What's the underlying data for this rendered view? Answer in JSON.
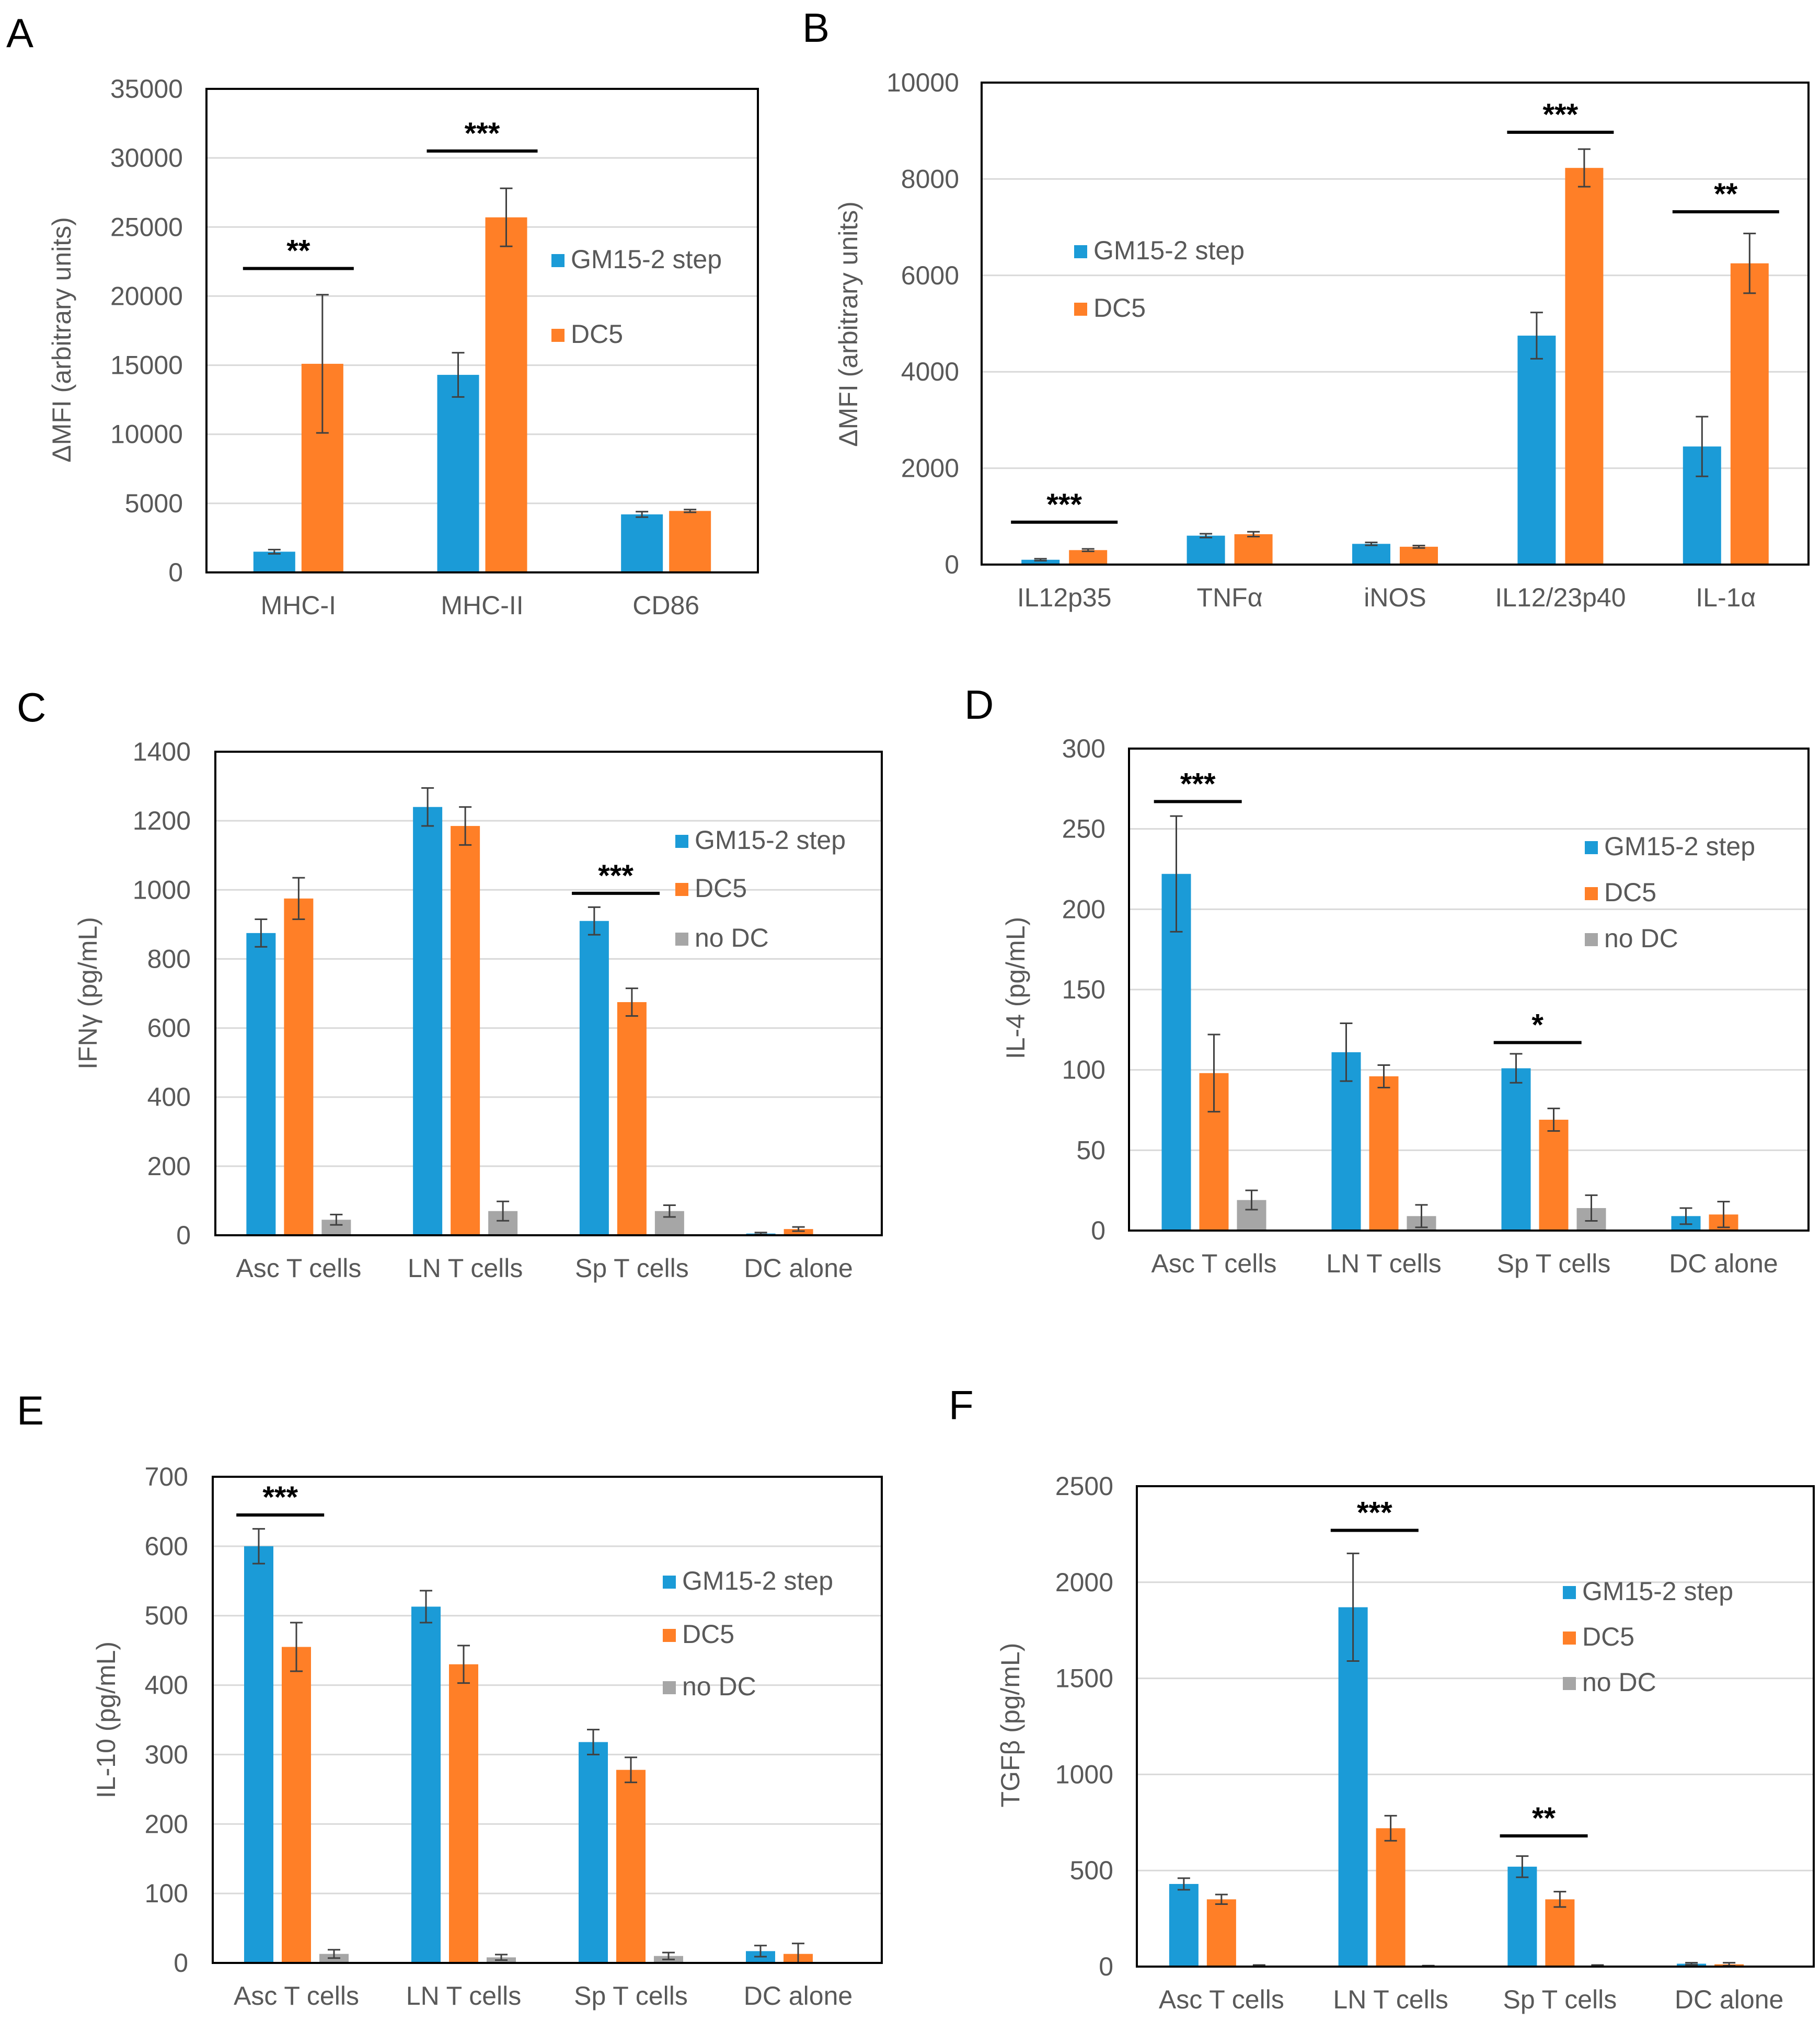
{
  "colors": {
    "gm": "#1B9BD7",
    "dc": "#FF7F27",
    "nodc": "#A6A6A6",
    "grid": "#D9D9D9",
    "axis": "#000000",
    "err": "#404040"
  },
  "chart_data": [
    {
      "panel": "A",
      "type": "bar",
      "ylabel": "ΔMFI (arbitrary units)",
      "ylim": [
        0,
        35000
      ],
      "yticks": [
        0,
        5000,
        10000,
        15000,
        20000,
        25000,
        30000,
        35000
      ],
      "categories": [
        "MHC-I",
        "MHC-II",
        "CD86"
      ],
      "series": [
        {
          "name": "GM15-2 step",
          "color": "gm",
          "values": [
            1500,
            14300,
            4200
          ],
          "errors": [
            150,
            1600,
            200
          ]
        },
        {
          "name": "DC5",
          "color": "dc",
          "values": [
            15100,
            25700,
            4450
          ],
          "errors": [
            5000,
            2100,
            100
          ]
        }
      ],
      "significance": [
        {
          "category": 0,
          "label": "**",
          "y": 22000
        },
        {
          "category": 1,
          "label": "***",
          "y": 30500
        }
      ]
    },
    {
      "panel": "B",
      "type": "bar",
      "ylabel": "ΔMFI (arbitrary units)",
      "ylim": [
        0,
        10000
      ],
      "yticks": [
        0,
        2000,
        4000,
        6000,
        8000,
        10000
      ],
      "categories": [
        "IL12p35",
        "TNFα",
        "iNOS",
        "IL12/23p40",
        "IL-1α"
      ],
      "series": [
        {
          "name": "GM15-2 step",
          "color": "gm",
          "values": [
            100,
            600,
            430,
            4750,
            2450
          ],
          "errors": [
            20,
            40,
            30,
            480,
            620
          ]
        },
        {
          "name": "DC5",
          "color": "dc",
          "values": [
            300,
            630,
            370,
            8230,
            6250
          ],
          "errors": [
            25,
            50,
            25,
            390,
            620
          ]
        }
      ],
      "significance": [
        {
          "category": 0,
          "label": "***",
          "y": 880
        },
        {
          "category": 3,
          "label": "***",
          "y": 8970
        },
        {
          "category": 4,
          "label": "**",
          "y": 7320
        }
      ]
    },
    {
      "panel": "C",
      "type": "bar",
      "ylabel": "IFNγ (pg/mL)",
      "ylim": [
        0,
        1400
      ],
      "yticks": [
        0,
        200,
        400,
        600,
        800,
        1000,
        1200,
        1400
      ],
      "categories": [
        "Asc T cells",
        "LN T cells",
        "Sp T cells",
        "DC alone"
      ],
      "series": [
        {
          "name": "GM15-2 step",
          "color": "gm",
          "values": [
            875,
            1240,
            910,
            5
          ],
          "errors": [
            40,
            55,
            40,
            3
          ]
        },
        {
          "name": "DC5",
          "color": "dc",
          "values": [
            975,
            1185,
            675,
            18
          ],
          "errors": [
            60,
            55,
            40,
            6
          ]
        },
        {
          "name": "no DC",
          "color": "nodc",
          "values": [
            45,
            70,
            70,
            null
          ],
          "errors": [
            15,
            28,
            17,
            null
          ]
        }
      ],
      "significance": [
        {
          "category": 2,
          "label": "***",
          "y": 990
        }
      ]
    },
    {
      "panel": "D",
      "type": "bar",
      "ylabel": "IL-4 (pg/mL)",
      "ylim": [
        0,
        300
      ],
      "yticks": [
        0,
        50,
        100,
        150,
        200,
        250,
        300
      ],
      "categories": [
        "Asc T cells",
        "LN T cells",
        "Sp T cells",
        "DC alone"
      ],
      "series": [
        {
          "name": "GM15-2 step",
          "color": "gm",
          "values": [
            222,
            111,
            101,
            9
          ],
          "errors": [
            36,
            18,
            9,
            5
          ]
        },
        {
          "name": "DC5",
          "color": "dc",
          "values": [
            98,
            96,
            69,
            10
          ],
          "errors": [
            24,
            7,
            7,
            8
          ]
        },
        {
          "name": "no DC",
          "color": "nodc",
          "values": [
            19,
            9,
            14,
            null
          ],
          "errors": [
            6,
            7,
            8,
            null
          ]
        }
      ],
      "significance": [
        {
          "category": 0,
          "label": "***",
          "y": 267
        },
        {
          "category": 2,
          "label": "*",
          "y": 117
        }
      ]
    },
    {
      "panel": "E",
      "type": "bar",
      "ylabel": "IL-10 (pg/mL)",
      "ylim": [
        0,
        700
      ],
      "yticks": [
        0,
        100,
        200,
        300,
        400,
        500,
        600,
        700
      ],
      "categories": [
        "Asc T cells",
        "LN T cells",
        "Sp T cells",
        "DC alone"
      ],
      "series": [
        {
          "name": "GM15-2 step",
          "color": "gm",
          "values": [
            600,
            513,
            318,
            17
          ],
          "errors": [
            25,
            23,
            18,
            8
          ]
        },
        {
          "name": "DC5",
          "color": "dc",
          "values": [
            455,
            430,
            278,
            13
          ],
          "errors": [
            35,
            27,
            18,
            15
          ]
        },
        {
          "name": "no DC",
          "color": "nodc",
          "values": [
            13,
            8,
            10,
            null
          ],
          "errors": [
            6,
            4,
            5,
            null
          ]
        }
      ],
      "significance": [
        {
          "category": 0,
          "label": "***",
          "y": 645
        }
      ]
    },
    {
      "panel": "F",
      "type": "bar",
      "ylabel": "TGFβ (pg/mL)",
      "ylim": [
        0,
        2500
      ],
      "yticks": [
        0,
        500,
        1000,
        1500,
        2000,
        2500
      ],
      "categories": [
        "Asc T cells",
        "LN T cells",
        "Sp T cells",
        "DC alone"
      ],
      "series": [
        {
          "name": "GM15-2 step",
          "color": "gm",
          "values": [
            430,
            1870,
            520,
            15
          ],
          "errors": [
            30,
            280,
            55,
            5
          ]
        },
        {
          "name": "DC5",
          "color": "dc",
          "values": [
            350,
            720,
            350,
            12
          ],
          "errors": [
            25,
            65,
            40,
            8
          ]
        },
        {
          "name": "no DC",
          "color": "nodc",
          "values": [
            5,
            3,
            5,
            null
          ],
          "errors": [
            3,
            2,
            3,
            null
          ]
        }
      ],
      "significance": [
        {
          "category": 1,
          "label": "***",
          "y": 2270
        },
        {
          "category": 2,
          "label": "**",
          "y": 680
        }
      ]
    }
  ]
}
